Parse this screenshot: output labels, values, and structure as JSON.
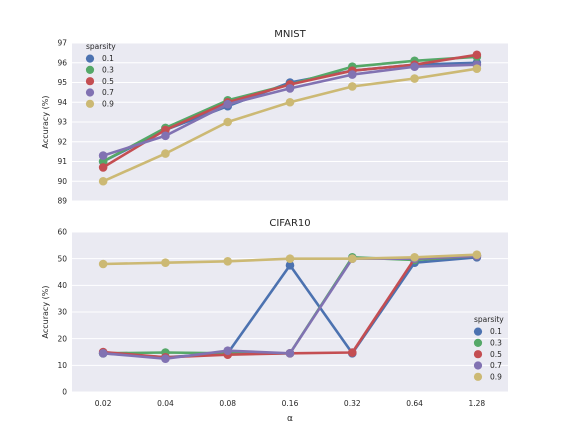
{
  "chart_data": [
    {
      "type": "line",
      "title": "MNIST",
      "ylabel": "Accuracy (%)",
      "xlabel": "",
      "categories": [
        "0.02",
        "0.04",
        "0.08",
        "0.16",
        "0.32",
        "0.64",
        "1.28"
      ],
      "ylim": [
        89,
        97
      ],
      "yticks": [
        "89",
        "90",
        "91",
        "92",
        "93",
        "94",
        "95",
        "96",
        "97"
      ],
      "grid": true,
      "legend": {
        "title": "sparsity",
        "placement": "top-left"
      },
      "series": [
        {
          "name": "0.1",
          "color": "#4c72b0",
          "values": [
            91.0,
            92.6,
            93.8,
            95.0,
            95.6,
            95.9,
            96.0
          ]
        },
        {
          "name": "0.3",
          "color": "#55a868",
          "values": [
            91.0,
            92.7,
            94.1,
            94.9,
            95.8,
            96.1,
            96.3
          ]
        },
        {
          "name": "0.5",
          "color": "#c44e52",
          "values": [
            90.7,
            92.6,
            94.0,
            94.9,
            95.6,
            95.9,
            96.4
          ]
        },
        {
          "name": "0.7",
          "color": "#8172b2",
          "values": [
            91.3,
            92.3,
            93.9,
            94.7,
            95.4,
            95.8,
            95.9
          ]
        },
        {
          "name": "0.9",
          "color": "#ccb974",
          "values": [
            90.0,
            91.4,
            93.0,
            94.0,
            94.8,
            95.2,
            95.7
          ]
        }
      ]
    },
    {
      "type": "line",
      "title": "CIFAR10",
      "ylabel": "Accuracy (%)",
      "xlabel": "α",
      "categories": [
        "0.02",
        "0.04",
        "0.08",
        "0.16",
        "0.32",
        "0.64",
        "1.28"
      ],
      "ylim": [
        0,
        60
      ],
      "yticks": [
        "0",
        "10",
        "20",
        "30",
        "40",
        "50",
        "60"
      ],
      "grid": true,
      "legend": {
        "title": "sparsity",
        "placement": "bottom-right"
      },
      "series": [
        {
          "name": "0.1",
          "color": "#4c72b0",
          "values": [
            14.5,
            13.0,
            14.5,
            47.5,
            14.5,
            48.5,
            50.5
          ]
        },
        {
          "name": "0.3",
          "color": "#55a868",
          "values": [
            14.5,
            14.8,
            14.5,
            14.5,
            50.5,
            49.5,
            51.0
          ]
        },
        {
          "name": "0.5",
          "color": "#c44e52",
          "values": [
            15.0,
            13.0,
            14.0,
            14.5,
            14.8,
            50.0,
            51.0
          ]
        },
        {
          "name": "0.7",
          "color": "#8172b2",
          "values": [
            14.5,
            12.5,
            15.5,
            14.5,
            50.0,
            50.0,
            51.0
          ]
        },
        {
          "name": "0.9",
          "color": "#ccb974",
          "values": [
            48.0,
            48.5,
            49.0,
            50.0,
            50.0,
            50.5,
            51.5
          ]
        }
      ]
    }
  ]
}
